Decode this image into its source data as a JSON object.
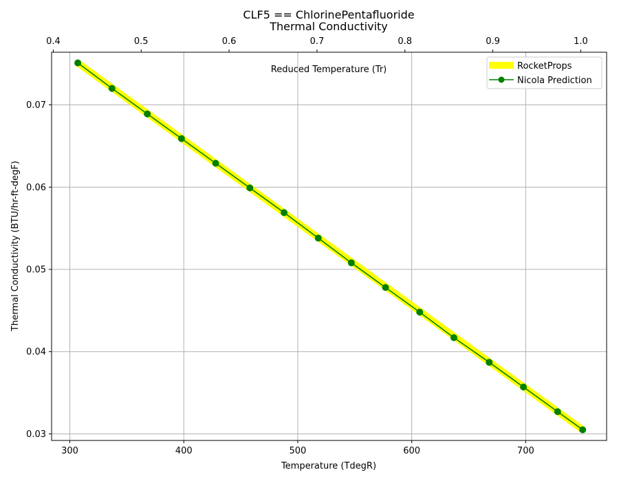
{
  "chart_data": {
    "type": "line",
    "title": "CLF5 == ChlorinePentafluoride",
    "subtitle": "Thermal Conductivity",
    "xlabel": "Temperature (TdegR)",
    "ylabel": "Thermal Conductivity (BTU/hr-ft-degF)",
    "x2label": "Reduced Temperature (Tr)",
    "xlim": [
      284,
      771
    ],
    "ylim": [
      0.0292,
      0.0764
    ],
    "x2lim": [
      0.3981,
      1.0294
    ],
    "xticks": [
      300,
      400,
      500,
      600,
      700
    ],
    "xtick_labels": [
      "300",
      "400",
      "500",
      "600",
      "700"
    ],
    "yticks": [
      0.03,
      0.04,
      0.05,
      0.06,
      0.07
    ],
    "ytick_labels": [
      "0.03",
      "0.04",
      "0.05",
      "0.06",
      "0.07"
    ],
    "x2ticks": [
      0.4,
      0.5,
      0.6,
      0.7,
      0.8,
      0.9,
      1.0
    ],
    "x2tick_labels": [
      "0.4",
      "0.5",
      "0.6",
      "0.7",
      "0.8",
      "0.9",
      "1.0"
    ],
    "grid": true,
    "legend_position": "top-right",
    "series": [
      {
        "name": "RocketProps",
        "color": "#ffff00",
        "marker": "none",
        "x": [
          307,
          750
        ],
        "y": [
          0.0751,
          0.0305
        ]
      },
      {
        "name": "Nicola Prediction",
        "color": "#008000",
        "marker": "circle",
        "x": [
          307,
          337,
          368,
          398,
          428,
          458,
          488,
          518,
          547,
          577,
          607,
          637,
          668,
          698,
          728,
          750
        ],
        "y": [
          0.0751,
          0.072,
          0.0689,
          0.0659,
          0.0629,
          0.0599,
          0.0569,
          0.0538,
          0.0508,
          0.0478,
          0.0448,
          0.0417,
          0.0387,
          0.0357,
          0.0327,
          0.0305
        ]
      }
    ]
  }
}
